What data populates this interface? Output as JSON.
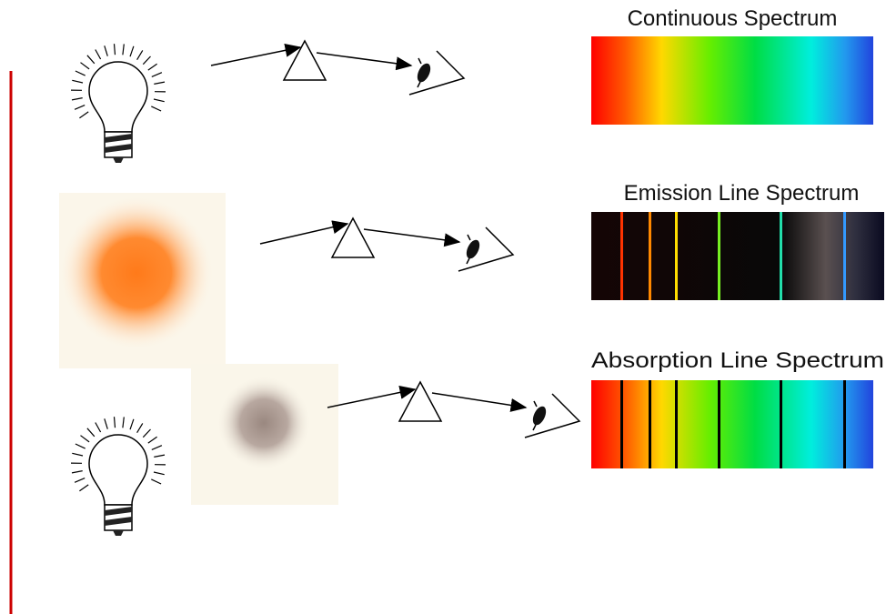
{
  "spectra": [
    {
      "label": "Continuous Spectrum"
    },
    {
      "label": "Emission Line Spectrum"
    },
    {
      "label": "Absorption Line Spectrum"
    }
  ]
}
